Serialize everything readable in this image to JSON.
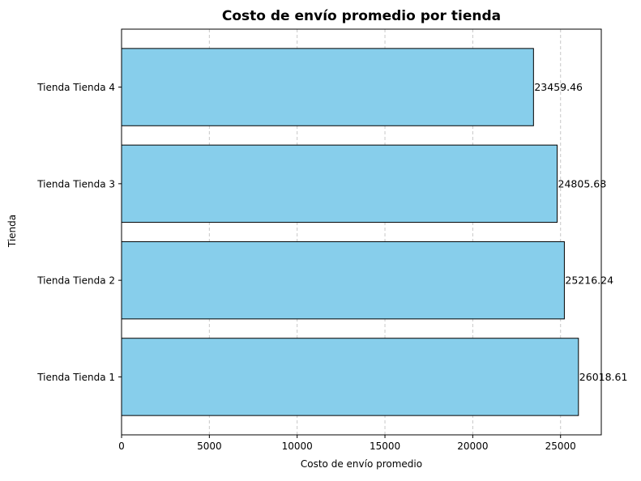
{
  "chart_data": {
    "type": "bar",
    "orientation": "horizontal",
    "title": "Costo de envío promedio por tienda",
    "xlabel": "Costo de envío promedio",
    "ylabel": "Tienda",
    "categories": [
      "Tienda Tienda 1",
      "Tienda Tienda 2",
      "Tienda Tienda 3",
      "Tienda Tienda 4"
    ],
    "values": [
      26018.61,
      25216.24,
      24805.68,
      23459.46
    ],
    "value_labels": [
      "26018.61",
      "25216.24",
      "24805.68",
      "23459.46"
    ],
    "xlim": [
      0,
      27320
    ],
    "xticks": [
      0,
      5000,
      10000,
      15000,
      20000,
      25000
    ],
    "xtick_labels": [
      "0",
      "5000",
      "10000",
      "15000",
      "20000",
      "25000"
    ],
    "grid": "x-axis dashed",
    "legend": "none",
    "colors": {
      "bar_fill": "#87ceeb",
      "bar_edge": "#000000",
      "grid": "#c8c8c8"
    }
  }
}
